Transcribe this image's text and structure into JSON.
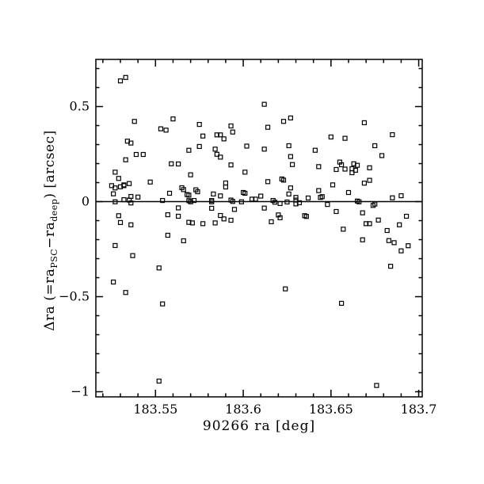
{
  "chart_data": {
    "type": "scatter",
    "title": "",
    "xlabel": "90266 ra [deg]",
    "ylabel": "Δra (=ra_PSC−ra_deep) [arcsec]",
    "ylabel_parts": {
      "prefix": "Δra (=ra",
      "sub1": "PSC",
      "mid": "−ra",
      "sub2": "deep",
      "suffix": ") [arcsec]"
    },
    "xlim": [
      183.516,
      183.702
    ],
    "ylim": [
      -1.027,
      0.748
    ],
    "x_major_ticks": [
      183.55,
      183.6,
      183.65,
      183.7
    ],
    "x_tick_labels": [
      "183.55",
      "183.6",
      "183.65",
      "183.7"
    ],
    "x_minor_step": 0.01,
    "y_major_ticks": [
      -1,
      -0.5,
      0,
      0.5
    ],
    "y_tick_labels": [
      "−1",
      "−0.5",
      "0",
      "0.5"
    ],
    "y_minor_step": 0.1,
    "reference_line_y": 0,
    "marker": "open-square",
    "marker_size_px": 5,
    "color": "#000000",
    "background": "#ffffff",
    "grid": false,
    "legend": null,
    "points": [
      [
        183.53,
        0.635
      ],
      [
        183.533,
        0.653
      ],
      [
        183.538,
        0.422
      ],
      [
        183.553,
        0.383
      ],
      [
        183.556,
        0.376
      ],
      [
        183.56,
        0.435
      ],
      [
        183.534,
        0.318
      ],
      [
        183.536,
        0.308
      ],
      [
        183.575,
        0.406
      ],
      [
        183.577,
        0.345
      ],
      [
        183.585,
        0.351
      ],
      [
        183.587,
        0.351
      ],
      [
        183.589,
        0.33
      ],
      [
        183.593,
        0.398
      ],
      [
        183.594,
        0.366
      ],
      [
        183.612,
        0.512
      ],
      [
        183.623,
        0.422
      ],
      [
        183.627,
        0.44
      ],
      [
        183.614,
        0.391
      ],
      [
        183.65,
        0.34
      ],
      [
        183.669,
        0.415
      ],
      [
        183.685,
        0.352
      ],
      [
        183.658,
        0.333
      ],
      [
        183.626,
        0.294
      ],
      [
        183.675,
        0.294
      ],
      [
        183.602,
        0.292
      ],
      [
        183.575,
        0.29
      ],
      [
        183.533,
        0.22
      ],
      [
        183.539,
        0.248
      ],
      [
        183.543,
        0.248
      ],
      [
        183.559,
        0.199
      ],
      [
        183.563,
        0.198
      ],
      [
        183.527,
        0.155
      ],
      [
        183.529,
        0.122
      ],
      [
        183.525,
        0.084
      ],
      [
        183.527,
        0.072
      ],
      [
        183.53,
        0.078
      ],
      [
        183.532,
        0.084
      ],
      [
        183.532,
        0.088
      ],
      [
        183.535,
        0.095
      ],
      [
        183.547,
        0.103
      ],
      [
        183.526,
        0.041
      ],
      [
        183.536,
        0.027
      ],
      [
        183.54,
        0.024
      ],
      [
        183.558,
        0.044
      ],
      [
        183.527,
        -0.001
      ],
      [
        183.532,
        0.01
      ],
      [
        183.535,
        0.008
      ],
      [
        183.536,
        -0.007
      ],
      [
        183.554,
        0.006
      ],
      [
        183.529,
        -0.074
      ],
      [
        183.557,
        -0.069
      ],
      [
        183.563,
        -0.033
      ],
      [
        183.563,
        -0.077
      ],
      [
        183.53,
        -0.11
      ],
      [
        183.536,
        -0.122
      ],
      [
        183.569,
        0.27
      ],
      [
        183.584,
        0.276
      ],
      [
        183.585,
        0.249
      ],
      [
        183.587,
        0.234
      ],
      [
        183.593,
        0.193
      ],
      [
        183.601,
        0.155
      ],
      [
        183.57,
        0.141
      ],
      [
        183.59,
        0.098
      ],
      [
        183.59,
        0.077
      ],
      [
        183.565,
        0.073
      ],
      [
        183.566,
        0.063
      ],
      [
        183.568,
        0.037
      ],
      [
        183.569,
        0.034
      ],
      [
        183.573,
        0.062
      ],
      [
        183.574,
        0.052
      ],
      [
        183.583,
        0.04
      ],
      [
        183.587,
        0.03
      ],
      [
        183.6,
        0.048
      ],
      [
        183.601,
        0.044
      ],
      [
        183.605,
        0.013
      ],
      [
        183.607,
        0.013
      ],
      [
        183.61,
        0.029
      ],
      [
        183.569,
        0.005
      ],
      [
        183.57,
        -0.001
      ],
      [
        183.572,
        0.006
      ],
      [
        183.582,
        0.006
      ],
      [
        183.582,
        -0.001
      ],
      [
        183.593,
        0.008
      ],
      [
        183.594,
        0.001
      ],
      [
        183.599,
        -0.001
      ],
      [
        183.582,
        -0.035
      ],
      [
        183.595,
        -0.041
      ],
      [
        183.587,
        -0.073
      ],
      [
        183.589,
        -0.091
      ],
      [
        183.569,
        -0.109
      ],
      [
        183.571,
        -0.112
      ],
      [
        183.577,
        -0.116
      ],
      [
        183.584,
        -0.112
      ],
      [
        183.593,
        -0.098
      ],
      [
        183.612,
        0.276
      ],
      [
        183.641,
        0.27
      ],
      [
        183.627,
        0.237
      ],
      [
        183.628,
        0.195
      ],
      [
        183.643,
        0.184
      ],
      [
        183.655,
        0.208
      ],
      [
        183.656,
        0.194
      ],
      [
        183.653,
        0.169
      ],
      [
        183.658,
        0.171
      ],
      [
        183.614,
        0.105
      ],
      [
        183.622,
        0.119
      ],
      [
        183.623,
        0.113
      ],
      [
        183.627,
        0.072
      ],
      [
        183.626,
        0.04
      ],
      [
        183.651,
        0.088
      ],
      [
        183.643,
        0.058
      ],
      [
        183.644,
        0.022
      ],
      [
        183.645,
        0.026
      ],
      [
        183.637,
        0.019
      ],
      [
        183.617,
        0.006
      ],
      [
        183.618,
        -0.003
      ],
      [
        183.621,
        -0.01
      ],
      [
        183.625,
        -0.002
      ],
      [
        183.63,
        0.022
      ],
      [
        183.63,
        0.008
      ],
      [
        183.63,
        -0.012
      ],
      [
        183.632,
        -0.006
      ],
      [
        183.648,
        -0.015
      ],
      [
        183.612,
        -0.034
      ],
      [
        183.653,
        -0.052
      ],
      [
        183.635,
        -0.074
      ],
      [
        183.636,
        -0.078
      ],
      [
        183.616,
        -0.106
      ],
      [
        183.62,
        -0.07
      ],
      [
        183.621,
        -0.085
      ],
      [
        183.657,
        -0.145
      ],
      [
        183.679,
        0.242
      ],
      [
        183.663,
        0.199
      ],
      [
        183.665,
        0.191
      ],
      [
        183.662,
        0.173
      ],
      [
        183.664,
        0.165
      ],
      [
        183.662,
        0.152
      ],
      [
        183.672,
        0.178
      ],
      [
        183.672,
        0.112
      ],
      [
        183.669,
        0.097
      ],
      [
        183.66,
        0.048
      ],
      [
        183.665,
        0.003
      ],
      [
        183.666,
        -0.001
      ],
      [
        183.674,
        -0.02
      ],
      [
        183.675,
        -0.013
      ],
      [
        183.685,
        0.02
      ],
      [
        183.69,
        0.031
      ],
      [
        183.668,
        -0.059
      ],
      [
        183.677,
        -0.097
      ],
      [
        183.693,
        -0.077
      ],
      [
        183.67,
        -0.116
      ],
      [
        183.672,
        -0.116
      ],
      [
        183.689,
        -0.122
      ],
      [
        183.682,
        -0.152
      ],
      [
        183.557,
        -0.177
      ],
      [
        183.527,
        -0.231
      ],
      [
        183.537,
        -0.284
      ],
      [
        183.552,
        -0.349
      ],
      [
        183.526,
        -0.423
      ],
      [
        183.533,
        -0.478
      ],
      [
        183.554,
        -0.538
      ],
      [
        183.566,
        -0.206
      ],
      [
        183.624,
        -0.459
      ],
      [
        183.656,
        -0.535
      ],
      [
        183.668,
        -0.201
      ],
      [
        183.683,
        -0.205
      ],
      [
        183.686,
        -0.216
      ],
      [
        183.69,
        -0.259
      ],
      [
        183.694,
        -0.232
      ],
      [
        183.684,
        -0.34
      ],
      [
        183.552,
        -0.944
      ],
      [
        183.676,
        -0.967
      ]
    ]
  }
}
